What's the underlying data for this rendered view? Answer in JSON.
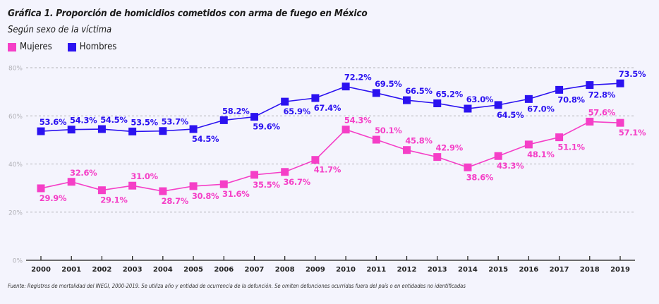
{
  "header": {
    "title": "Gráfica 1. Proporción de homicidios cometidos con arma de fuego en México",
    "subtitle": "Según sexo de la víctima"
  },
  "legend": [
    {
      "label": "Mujeres",
      "color": "#f53fc7"
    },
    {
      "label": "Hombres",
      "color": "#2b12f0"
    }
  ],
  "footnote": "Fuente: Registros de mortalidad del INEGI, 2000-2019. Se utiliza año y entidad de ocurrencia de la defunción. Se omiten defunciones ocurridas fuera del país o en entidades no identificadas",
  "chart_data": {
    "type": "line",
    "title": "Gráfica 1. Proporción de homicidios cometidos con arma de fuego en México",
    "subtitle": "Según sexo de la víctima",
    "xlabel": "",
    "ylabel": "",
    "x": [
      "2000",
      "2001",
      "2002",
      "2003",
      "2004",
      "2005",
      "2006",
      "2007",
      "2008",
      "2009",
      "2010",
      "2011",
      "2012",
      "2013",
      "2014",
      "2015",
      "2016",
      "2017",
      "2018",
      "2019"
    ],
    "ylim": [
      0,
      80
    ],
    "yticks": [
      0,
      20,
      40,
      60,
      80
    ],
    "ytick_labels": [
      "0%",
      "20%",
      "40%",
      "60%",
      "80%"
    ],
    "grid": true,
    "legend_position": "top-left",
    "series": [
      {
        "name": "Mujeres",
        "color": "#f53fc7",
        "values": [
          29.9,
          32.6,
          29.1,
          31.0,
          28.7,
          30.8,
          31.6,
          35.5,
          36.7,
          41.7,
          54.3,
          50.1,
          45.8,
          42.9,
          38.6,
          43.3,
          48.1,
          51.1,
          57.6,
          57.1
        ],
        "labels": [
          "29.9%",
          "32.6%",
          "29.1%",
          "31.0%",
          "28.7%",
          "30.8%",
          "31.6%",
          "35.5%",
          "36.7%",
          "41.7%",
          "54.3%",
          "50.1%",
          "45.8%",
          "42.9%",
          "38.6%",
          "43.3%",
          "48.1%",
          "51.1%",
          "57.6%",
          "57.1%"
        ],
        "label_pos": [
          "below",
          "above",
          "below",
          "above",
          "below",
          "below",
          "below",
          "below",
          "below",
          "below",
          "above",
          "above",
          "above",
          "above",
          "below",
          "below",
          "below",
          "below",
          "above",
          "below"
        ]
      },
      {
        "name": "Hombres",
        "color": "#2b12f0",
        "values": [
          53.6,
          54.3,
          54.5,
          53.5,
          53.7,
          54.5,
          58.2,
          59.6,
          65.9,
          67.4,
          72.2,
          69.5,
          66.5,
          65.2,
          63.0,
          64.5,
          67.0,
          70.8,
          72.8,
          73.5
        ],
        "labels": [
          "53.6%",
          "54.3%",
          "54.5%",
          "53.5%",
          "53.7%",
          "54.5%",
          "58.2%",
          "59.6%",
          "65.9%",
          "67.4%",
          "72.2%",
          "69.5%",
          "66.5%",
          "65.2%",
          "63.0%",
          "64.5%",
          "67.0%",
          "70.8%",
          "72.8%",
          "73.5%"
        ],
        "label_pos": [
          "above",
          "above",
          "above",
          "above",
          "above",
          "below",
          "above",
          "below",
          "below",
          "below",
          "above",
          "above",
          "above",
          "above",
          "above",
          "below",
          "below",
          "below",
          "below",
          "above"
        ]
      }
    ]
  }
}
